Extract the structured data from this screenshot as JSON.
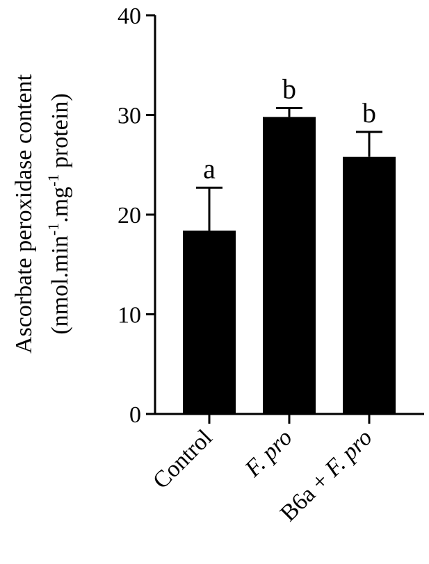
{
  "chart_data": {
    "type": "bar",
    "categories": [
      "Control",
      "F. pro",
      "B6a + F. pro"
    ],
    "category_labels": [
      {
        "parts": [
          {
            "text": "Control",
            "italic": false
          }
        ]
      },
      {
        "parts": [
          {
            "text": "F. pro",
            "italic": true
          }
        ]
      },
      {
        "parts": [
          {
            "text": "B6a + ",
            "italic": false
          },
          {
            "text": "F. pro",
            "italic": true
          }
        ]
      }
    ],
    "values": [
      18.4,
      29.8,
      25.8
    ],
    "errors": [
      4.3,
      0.9,
      2.5
    ],
    "significance": [
      "a",
      "b",
      "b"
    ],
    "ylabel_line1": "Ascorbate peroxidase content",
    "ylabel_line2": {
      "a": "(nmol.min",
      "sup1": "-1",
      "b": ".mg",
      "sup2": "-1",
      "c": " protein)"
    },
    "ylim": [
      0,
      40
    ],
    "yticks": [
      0,
      10,
      20,
      30,
      40
    ],
    "bar_color": "#000000",
    "grid": false
  }
}
